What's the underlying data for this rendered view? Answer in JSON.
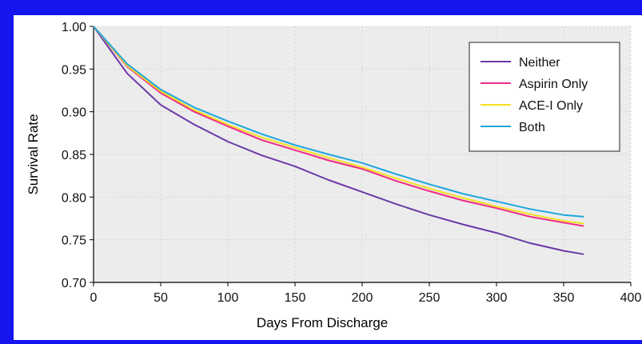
{
  "colors": {
    "frame": "#1515f0",
    "panel": "#ffffff",
    "plot_area": "#ececec",
    "grid": "#d4d4d4",
    "axis": "#000000"
  },
  "chart_data": {
    "type": "line",
    "xlabel": "Days From Discharge",
    "ylabel": "Survival Rate",
    "xlim": [
      0,
      400
    ],
    "ylim": [
      0.7,
      1.0
    ],
    "xticks": [
      0,
      50,
      100,
      150,
      200,
      250,
      300,
      350,
      400
    ],
    "yticks": [
      0.7,
      0.75,
      0.8,
      0.85,
      0.9,
      0.95,
      1.0
    ],
    "xtick_labels": [
      "0",
      "50",
      "100",
      "150",
      "200",
      "250",
      "300",
      "350",
      "400"
    ],
    "ytick_labels": [
      "0.70",
      "0.75",
      "0.80",
      "0.85",
      "0.90",
      "0.95",
      "1.00"
    ],
    "grid": true,
    "legend_position": "top-right",
    "x": [
      0,
      25,
      50,
      75,
      100,
      125,
      150,
      175,
      200,
      225,
      250,
      275,
      300,
      325,
      350,
      365
    ],
    "series": [
      {
        "name": "Neither",
        "color": "#6a3aa6",
        "values": [
          1.0,
          0.945,
          0.908,
          0.885,
          0.865,
          0.849,
          0.836,
          0.82,
          0.806,
          0.792,
          0.779,
          0.768,
          0.758,
          0.746,
          0.737,
          0.733
        ]
      },
      {
        "name": "Aspirin Only",
        "color": "#ee2a8a",
        "values": [
          1.0,
          0.953,
          0.922,
          0.9,
          0.883,
          0.867,
          0.855,
          0.843,
          0.833,
          0.819,
          0.807,
          0.796,
          0.787,
          0.777,
          0.77,
          0.766
        ]
      },
      {
        "name": "ACE-I Only",
        "color": "#f3e020",
        "values": [
          1.0,
          0.954,
          0.924,
          0.902,
          0.885,
          0.87,
          0.858,
          0.846,
          0.835,
          0.822,
          0.81,
          0.799,
          0.789,
          0.78,
          0.772,
          0.769
        ]
      },
      {
        "name": "Both",
        "color": "#1ea6dc",
        "values": [
          1.0,
          0.956,
          0.926,
          0.905,
          0.889,
          0.874,
          0.861,
          0.85,
          0.84,
          0.827,
          0.815,
          0.804,
          0.795,
          0.786,
          0.779,
          0.777
        ]
      }
    ]
  }
}
